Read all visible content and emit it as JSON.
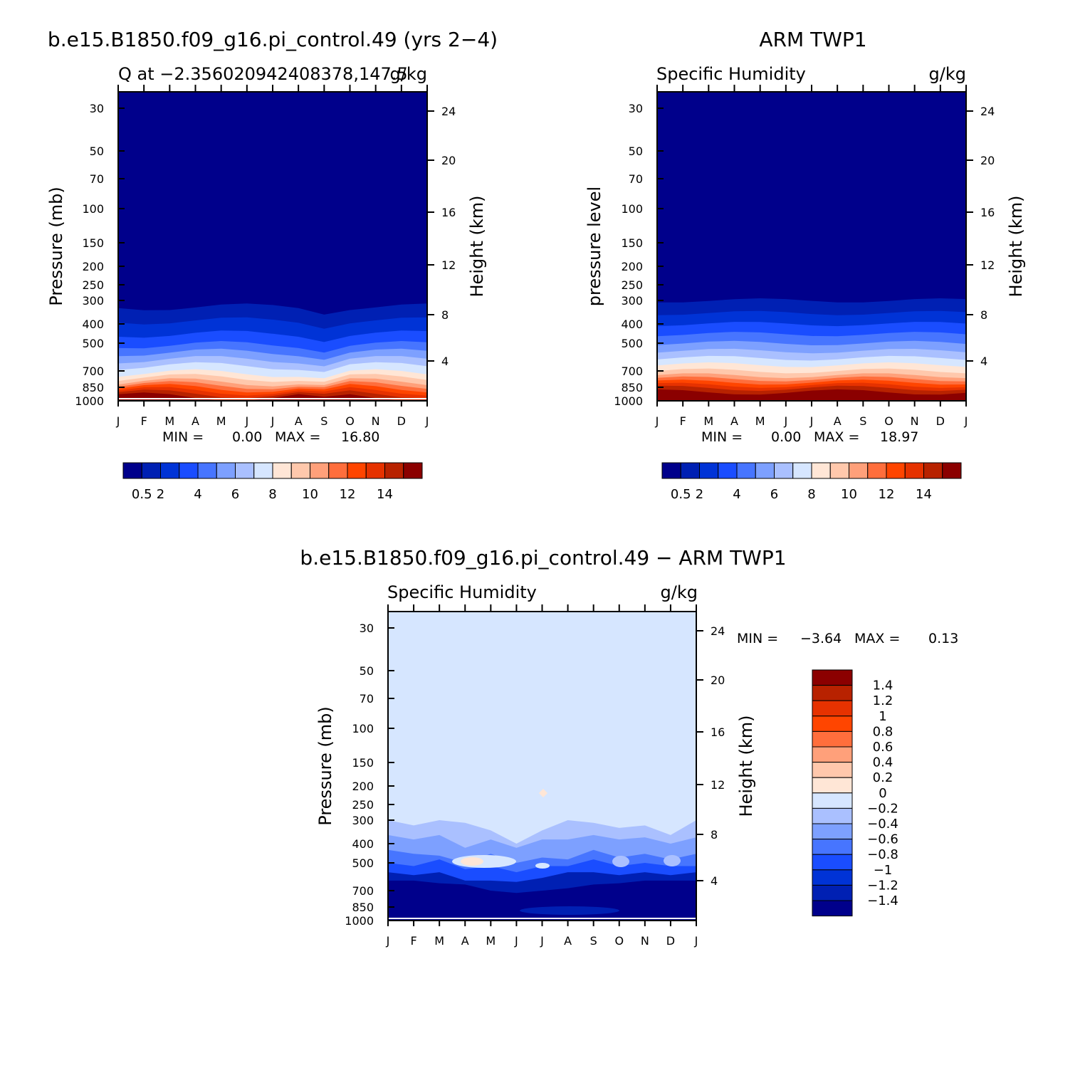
{
  "palette": [
    "#00008b",
    "#0020b3",
    "#0033d6",
    "#1a4dff",
    "#4775ff",
    "#7da0ff",
    "#aac0ff",
    "#d6e6ff",
    "#ffe6d6",
    "#ffc8ac",
    "#ffa07a",
    "#ff6e3c",
    "#ff4500",
    "#e63200",
    "#b82200",
    "#8b0000"
  ],
  "colorbar_top_labels": [
    "0.5",
    "2",
    "4",
    "6",
    "8",
    "10",
    "12",
    "14"
  ],
  "colorbar_diff_labels": [
    "1.4",
    "1.2",
    "1",
    "0.8",
    "0.6",
    "0.4",
    "0.2",
    "0",
    "−0.2",
    "−0.4",
    "−0.6",
    "−0.8",
    "−1",
    "−1.2",
    "−1.4"
  ],
  "month_ticks": [
    "J",
    "F",
    "M",
    "A",
    "M",
    "J",
    "J",
    "A",
    "S",
    "O",
    "N",
    "D",
    "J"
  ],
  "pressure_ticks": [
    "30",
    "50",
    "70",
    "100",
    "150",
    "200",
    "250",
    "300",
    "400",
    "500",
    "700",
    "850",
    "1000"
  ],
  "height_ticks": [
    "24",
    "20",
    "16",
    "12",
    "8",
    "4"
  ],
  "chart_data": [
    {
      "type": "contour",
      "title": "b.e15.B1850.f09_g16.pi_control.49 (yrs 2−4)",
      "left_subtitle": "Q at −2.356020942408378,147.5",
      "right_subtitle": "g/kg",
      "ylabel": "Pressure (mb)",
      "ylabel_right": "Height (km)",
      "stats": {
        "min_label": "MIN =",
        "min": "0.00",
        "max_label": "MAX =",
        "max": "16.80"
      },
      "x": [
        "J",
        "F",
        "M",
        "A",
        "M",
        "J",
        "J",
        "A",
        "S",
        "O",
        "N",
        "D",
        "J"
      ],
      "contour_levels": [
        0.5,
        1,
        2,
        3,
        4,
        5,
        6,
        7,
        8,
        9,
        10,
        11,
        12,
        13,
        14
      ],
      "level_pressures_mb": [
        325,
        385,
        450,
        510,
        560,
        610,
        660,
        720,
        760,
        800,
        830,
        860,
        890,
        920,
        955
      ]
    },
    {
      "type": "contour",
      "title": "ARM TWP1",
      "left_subtitle": "Specific Humidity",
      "right_subtitle": "g/kg",
      "ylabel": "pressure level",
      "ylabel_right": "Height (km)",
      "stats": {
        "min_label": "MIN =",
        "min": "0.00",
        "max_label": "MAX =",
        "max": "18.97"
      },
      "x": [
        "J",
        "F",
        "M",
        "A",
        "M",
        "J",
        "J",
        "A",
        "S",
        "O",
        "N",
        "D",
        "J"
      ],
      "contour_levels": [
        0.5,
        1,
        2,
        3,
        4,
        5,
        6,
        7,
        8,
        9,
        10,
        11,
        12,
        13,
        14
      ],
      "level_pressures_mb": [
        300,
        350,
        400,
        450,
        500,
        550,
        600,
        650,
        700,
        740,
        770,
        800,
        830,
        860,
        900
      ]
    },
    {
      "type": "contour",
      "title": "b.e15.B1850.f09_g16.pi_control.49 − ARM TWP1",
      "left_subtitle": "Specific Humidity",
      "right_subtitle": "g/kg",
      "ylabel": "Pressure (mb)",
      "ylabel_right": "Height (km)",
      "stats": {
        "min_label": "MIN =",
        "min": "−3.64",
        "max_label": "MAX =",
        "max": "0.13"
      },
      "x": [
        "J",
        "F",
        "M",
        "A",
        "M",
        "J",
        "J",
        "A",
        "S",
        "O",
        "N",
        "D",
        "J"
      ],
      "contour_levels": [
        -1.4,
        -1.2,
        -1,
        -0.8,
        -0.6,
        -0.4,
        -0.2,
        0,
        0.2,
        0.4,
        0.6,
        0.8,
        1,
        1.2,
        1.4
      ],
      "background_level": "0 to −0.2 (upper troposphere/stratosphere)"
    }
  ]
}
